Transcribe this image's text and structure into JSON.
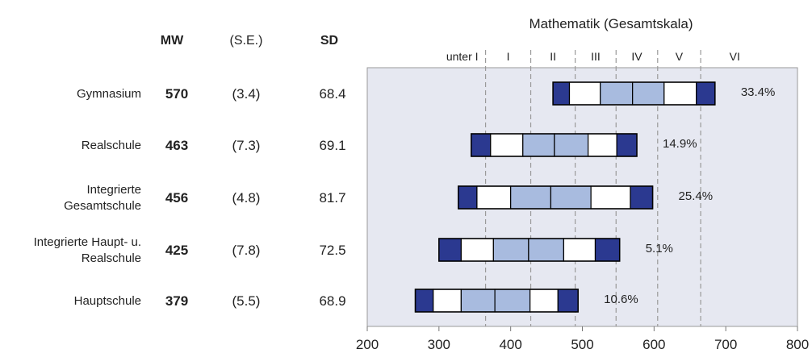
{
  "chart_data": {
    "type": "box-percentile",
    "title": "Mathematik (Gesamtskala)",
    "column_headers": {
      "mw": "MW",
      "se": "(S.E.)",
      "sd": "SD"
    },
    "level_labels": [
      "unter I",
      "I",
      "II",
      "III",
      "IV",
      "V",
      "VI"
    ],
    "level_cutoffs": [
      365,
      428,
      490,
      547,
      605,
      665
    ],
    "x_ticks": [
      200,
      300,
      400,
      500,
      600,
      700,
      800
    ],
    "xlim": [
      200,
      800
    ],
    "grid": "dashed vertical lines at level cutoffs",
    "colors": {
      "outer": "#2b3990",
      "middle": "#a8bbdf",
      "inner_white": "#ffffff",
      "plot_bg": "#e6e8f1"
    },
    "rows": [
      {
        "label_lines": [
          "Gymnasium"
        ],
        "mw": "570",
        "se": "(3.4)",
        "sd": "68.4",
        "percentiles": [
          459,
          482,
          525,
          570,
          614,
          659,
          685
        ],
        "share": "33.4%"
      },
      {
        "label_lines": [
          "Realschule"
        ],
        "mw": "463",
        "se": "(7.3)",
        "sd": "69.1",
        "percentiles": [
          345,
          372,
          417,
          461,
          508,
          548,
          576
        ],
        "share": "14.9%"
      },
      {
        "label_lines": [
          "Integrierte",
          "Gesamtschule"
        ],
        "mw": "456",
        "se": "(4.8)",
        "sd": "81.7",
        "percentiles": [
          327,
          353,
          400,
          456,
          512,
          567,
          598
        ],
        "share": "25.4%"
      },
      {
        "label_lines": [
          "Integrierte Haupt- u.",
          "Realschule"
        ],
        "mw": "425",
        "se": "(7.8)",
        "sd": "72.5",
        "percentiles": [
          300,
          331,
          376,
          425,
          474,
          518,
          552
        ],
        "share": "5.1%"
      },
      {
        "label_lines": [
          "Hauptschule"
        ],
        "mw": "379",
        "se": "(5.5)",
        "sd": "68.9",
        "percentiles": [
          267,
          292,
          331,
          378,
          427,
          466,
          494
        ],
        "share": "10.6%"
      }
    ]
  }
}
